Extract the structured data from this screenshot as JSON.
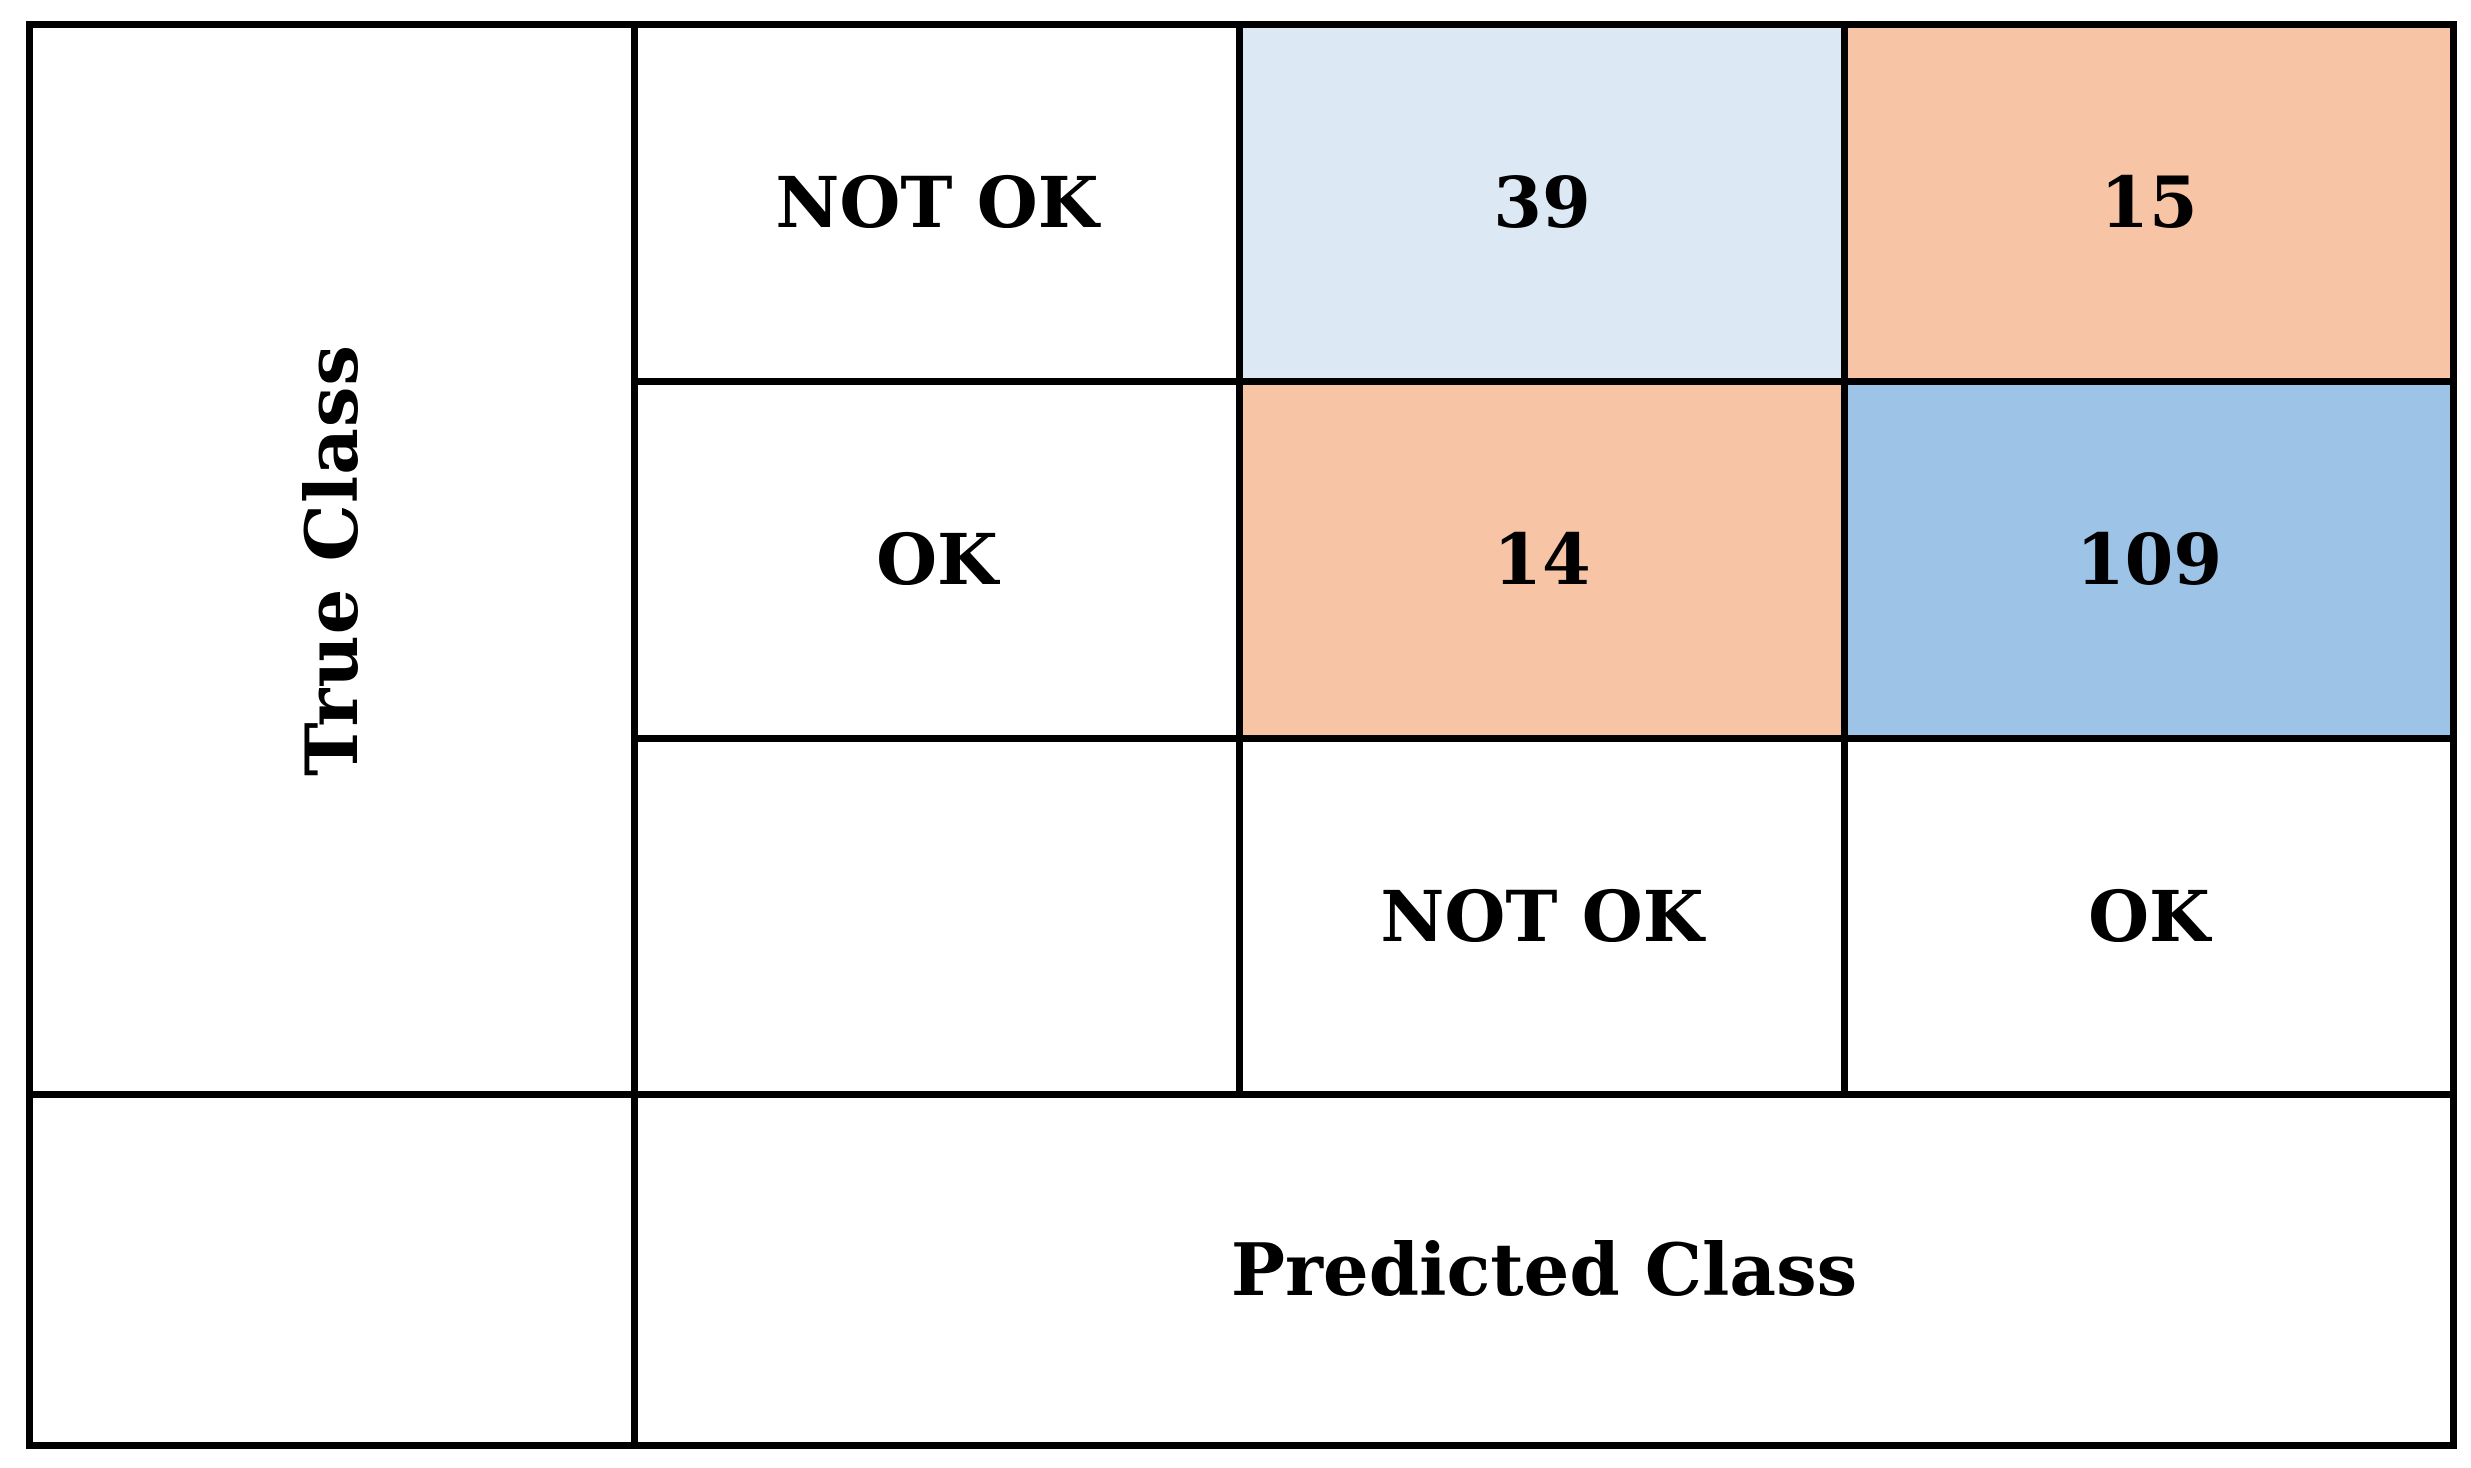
{
  "chart_data": {
    "type": "heatmap",
    "title": "",
    "xlabel": "Predicted Class",
    "ylabel": "True Class",
    "row_labels": [
      "NOT OK",
      "OK"
    ],
    "column_labels": [
      "NOT OK",
      "OK"
    ],
    "matrix": [
      [
        39,
        15
      ],
      [
        14,
        109
      ]
    ],
    "cells_display": [
      [
        "39",
        "15"
      ],
      [
        "14",
        "109"
      ]
    ],
    "colors": {
      "correct_low": "#dce9f5",
      "correct_high": "#9dc3e6",
      "error": "#f7c4a5",
      "border": "#000000",
      "background": "#ffffff"
    },
    "grid": true,
    "legend": "none"
  }
}
